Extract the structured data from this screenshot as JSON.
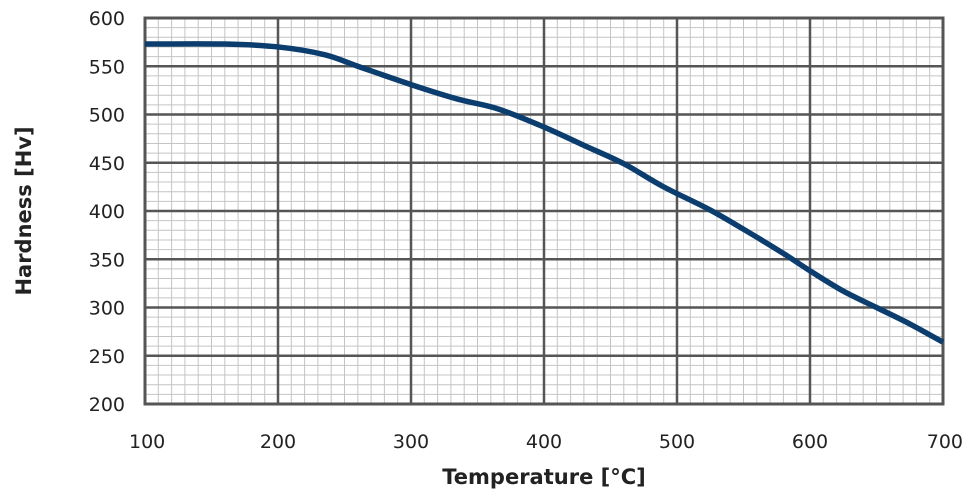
{
  "chart_data": {
    "type": "line",
    "title": "",
    "xlabel": "Temperature [°C]",
    "ylabel": "Hardness [Hv]",
    "xlim": [
      100,
      700
    ],
    "ylim": [
      200,
      600
    ],
    "x_ticks": [
      "100",
      "200",
      "300",
      "400",
      "500",
      "600",
      "700"
    ],
    "y_ticks": [
      "600",
      "550",
      "500",
      "450",
      "400",
      "350",
      "300",
      "250",
      "200"
    ],
    "x_tick_values": [
      100,
      200,
      300,
      400,
      500,
      600,
      700
    ],
    "y_tick_values": [
      600,
      550,
      500,
      450,
      400,
      350,
      300,
      250,
      200
    ],
    "grid": true,
    "minor_grid": true,
    "series": [
      {
        "color": "#0b3d6e",
        "x": [
          100,
          160,
          200,
          235,
          260,
          300,
          335,
          365,
          400,
          430,
          460,
          490,
          525,
          555,
          580,
          600,
          625,
          650,
          675,
          700
        ],
        "y": [
          573,
          573,
          570,
          562,
          550,
          531,
          516,
          506,
          487,
          468,
          449,
          425,
          401,
          377,
          356,
          338,
          317,
          300,
          283,
          264
        ]
      }
    ]
  }
}
